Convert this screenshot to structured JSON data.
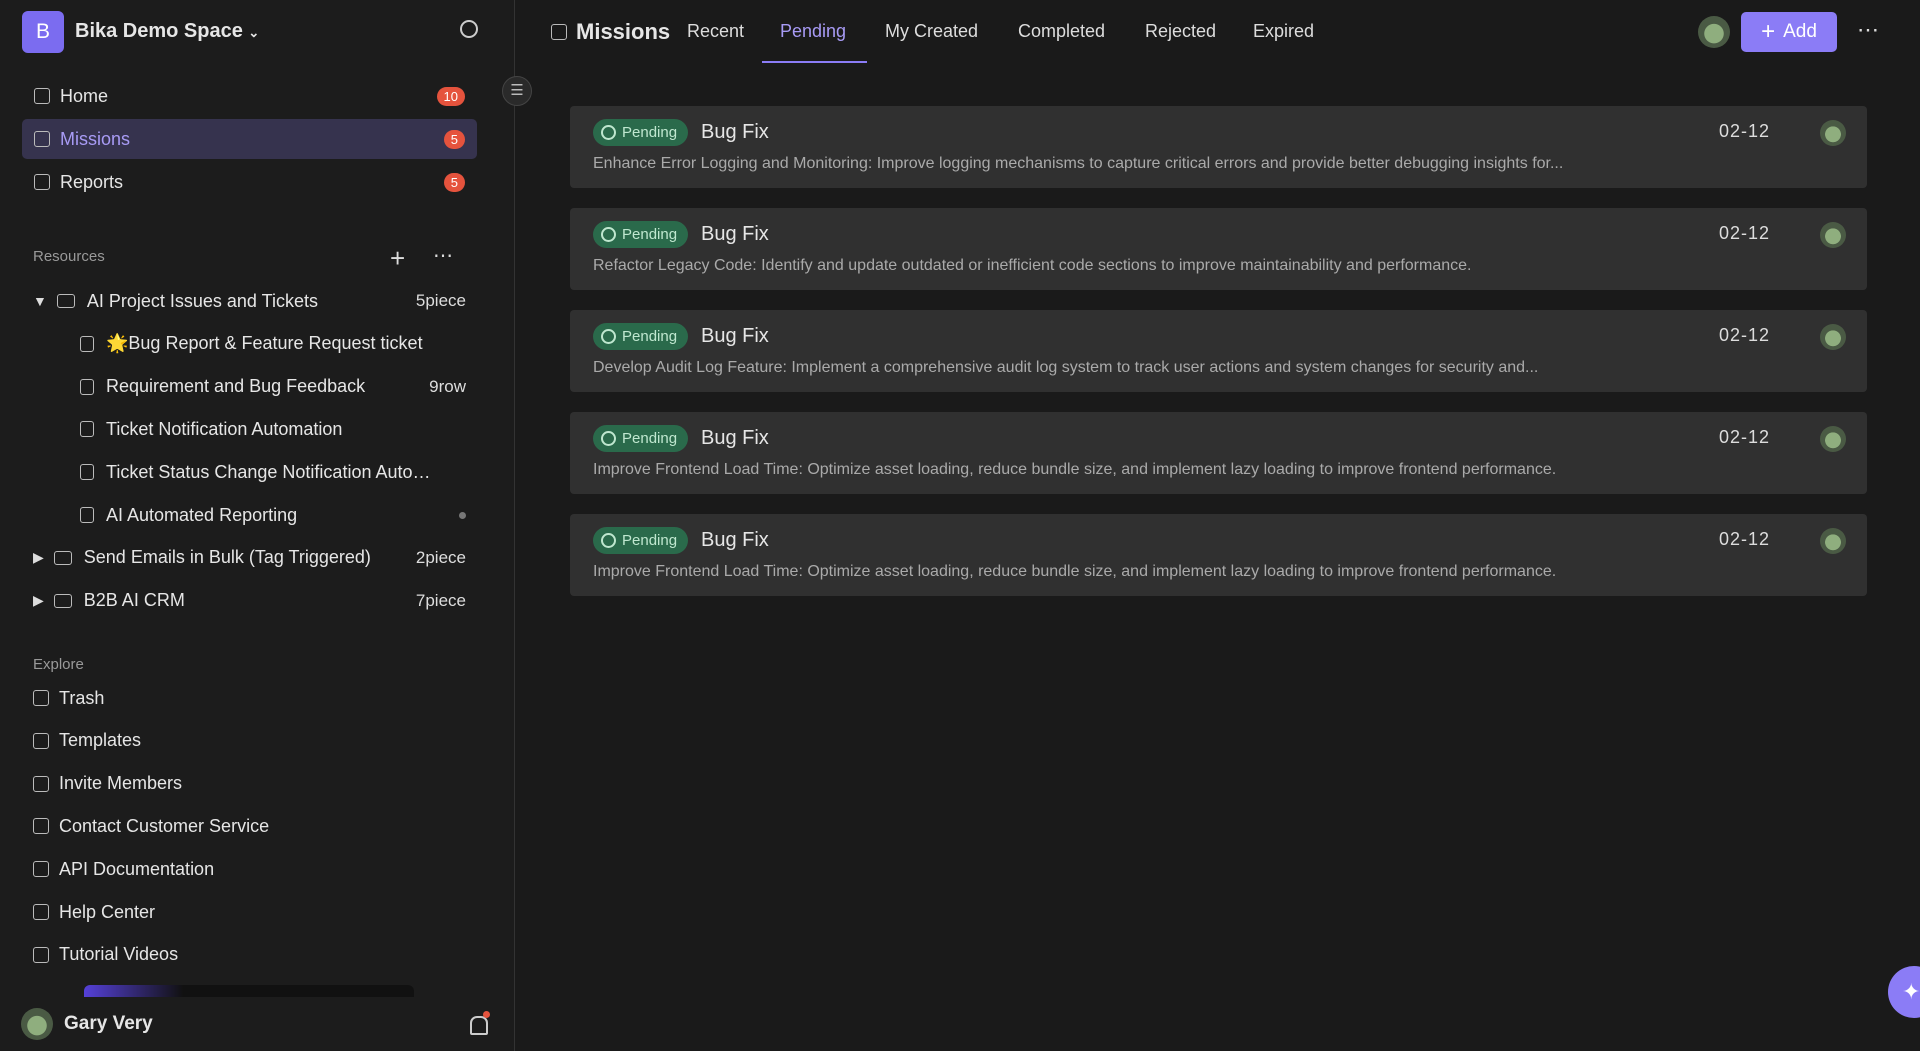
{
  "header": {
    "space_name": "Bika Demo Space"
  },
  "nav": [
    {
      "label": "Home",
      "badge": 10
    },
    {
      "label": "Missions",
      "badge": 5
    },
    {
      "label": "Reports",
      "badge": 5
    }
  ],
  "resources": {
    "title": "Resources",
    "items": [
      {
        "label": "AI Project Issues and Tickets",
        "count": "5piece",
        "children": [
          {
            "label": "🌟Bug Report & Feature Request ticket"
          },
          {
            "label": "Requirement and Bug Feedback",
            "count": "9row"
          },
          {
            "label": "Ticket Notification Automation"
          },
          {
            "label": "Ticket Status Change Notification Auto…"
          },
          {
            "label": "AI Automated Reporting"
          }
        ]
      },
      {
        "label": "Send Emails in Bulk (Tag Triggered)",
        "count": "2piece"
      },
      {
        "label": "B2B AI CRM",
        "count": "7piece"
      }
    ]
  },
  "explore": {
    "title": "Explore",
    "items": [
      "Trash",
      "Templates",
      "Invite Members",
      "Contact Customer Service",
      "API Documentation",
      "Help Center",
      "Tutorial Videos"
    ]
  },
  "user": {
    "name": "Gary Very"
  },
  "main": {
    "title": "Missions",
    "tabs": [
      "Recent",
      "Pending",
      "My Created",
      "Completed",
      "Rejected",
      "Expired"
    ],
    "add_button": "Add",
    "missions": [
      {
        "status": "Pending",
        "title": "Bug Fix",
        "description": "Enhance Error Logging and Monitoring: Improve logging mechanisms to capture critical errors and provide better debugging insights for...",
        "date": "02-12"
      },
      {
        "status": "Pending",
        "title": "Bug Fix",
        "description": "Refactor Legacy Code: Identify and update outdated or inefficient code sections to improve maintainability and performance.",
        "date": "02-12"
      },
      {
        "status": "Pending",
        "title": "Bug Fix",
        "description": "Develop Audit Log Feature: Implement a comprehensive audit log system to track user actions and system changes for security and...",
        "date": "02-12"
      },
      {
        "status": "Pending",
        "title": "Bug Fix",
        "description": "Improve Frontend Load Time: Optimize asset loading, reduce bundle size, and implement lazy loading to improve frontend performance.",
        "date": "02-12"
      },
      {
        "status": "Pending",
        "title": "Bug Fix",
        "description": "Improve Frontend Load Time: Optimize asset loading, reduce bundle size, and implement lazy loading to improve frontend performance.",
        "date": "02-12"
      }
    ]
  }
}
